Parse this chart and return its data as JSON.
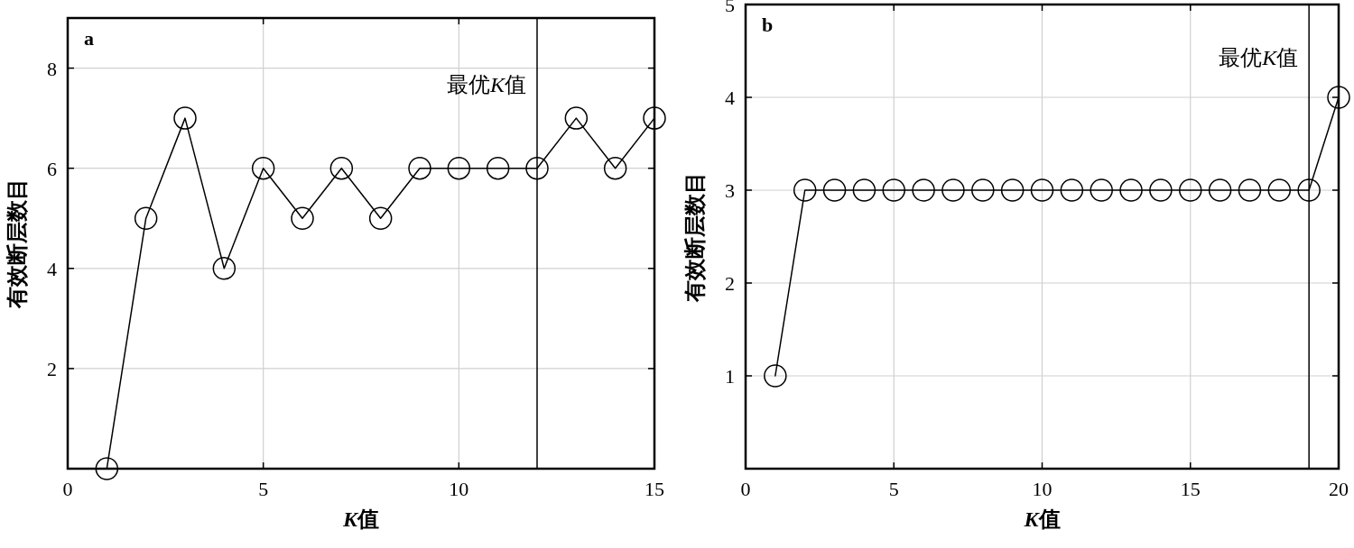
{
  "chart_data": [
    {
      "type": "line",
      "x": [
        1,
        2,
        3,
        4,
        5,
        6,
        7,
        8,
        9,
        10,
        11,
        12,
        13,
        14,
        15
      ],
      "series": [
        {
          "color": "#000000",
          "values": [
            0,
            5,
            7,
            4,
            6,
            5,
            6,
            5,
            6,
            6,
            6,
            6,
            7,
            6,
            7
          ]
        }
      ],
      "xlim": [
        0,
        15
      ],
      "xticks": [
        0,
        5,
        10,
        15
      ],
      "ylim": [
        0,
        9
      ],
      "yticks": [
        2,
        4,
        6,
        8
      ],
      "xlabel": "K值",
      "ylabel": "有效断层数目",
      "grid": true,
      "marker": "circle",
      "line_style": "solid",
      "ref_lines": [
        {
          "axis": "x",
          "value": 12,
          "label": "最优K值",
          "color": "#000000"
        }
      ],
      "annotations": [
        "a"
      ]
    },
    {
      "type": "line",
      "x": [
        1,
        2,
        3,
        4,
        5,
        6,
        7,
        8,
        9,
        10,
        11,
        12,
        13,
        14,
        15,
        16,
        17,
        18,
        19,
        20
      ],
      "series": [
        {
          "color": "#000000",
          "values": [
            1,
            3,
            3,
            3,
            3,
            3,
            3,
            3,
            3,
            3,
            3,
            3,
            3,
            3,
            3,
            3,
            3,
            3,
            3,
            4
          ]
        }
      ],
      "xlim": [
        0,
        20
      ],
      "xticks": [
        0,
        5,
        10,
        15,
        20
      ],
      "ylim": [
        0,
        5
      ],
      "yticks": [
        1,
        2,
        3,
        4,
        5
      ],
      "xlabel": "K值",
      "ylabel": "有效断层数目",
      "grid": true,
      "marker": "circle",
      "line_style": "solid",
      "ref_lines": [
        {
          "axis": "x",
          "value": 19,
          "label": "最优K值",
          "color": "#000000"
        }
      ],
      "annotations": [
        "b"
      ]
    }
  ]
}
